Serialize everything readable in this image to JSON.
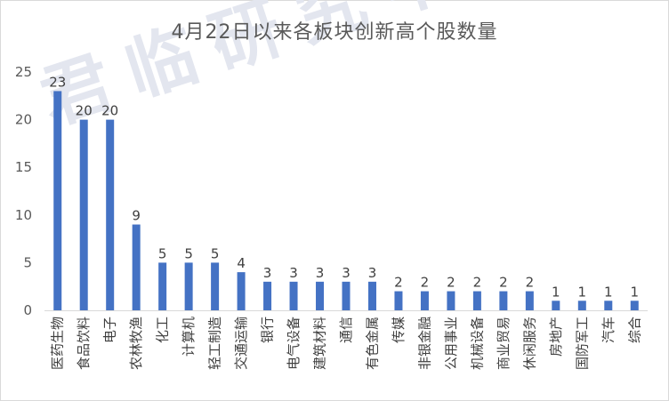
{
  "chart_data": {
    "type": "bar",
    "title": "4月22日以来各板块创新高个股数量",
    "watermark": "君临研究中心",
    "categories": [
      "医药生物",
      "食品饮料",
      "电子",
      "农林牧渔",
      "化工",
      "计算机",
      "轻工制造",
      "交通运输",
      "银行",
      "电气设备",
      "建筑材料",
      "通信",
      "有色金属",
      "传媒",
      "非银金融",
      "公用事业",
      "机械设备",
      "商业贸易",
      "休闲服务",
      "房地产",
      "国防军工",
      "汽车",
      "综合"
    ],
    "values": [
      23,
      20,
      20,
      9,
      5,
      5,
      5,
      4,
      3,
      3,
      3,
      3,
      3,
      2,
      2,
      2,
      2,
      2,
      2,
      1,
      1,
      1,
      1
    ],
    "yticks": [
      0,
      5,
      10,
      15,
      20,
      25
    ],
    "ylim": [
      0,
      25
    ],
    "bar_color": "#4472c4",
    "grid": false,
    "legend": "none",
    "xlabel": "",
    "ylabel": ""
  }
}
